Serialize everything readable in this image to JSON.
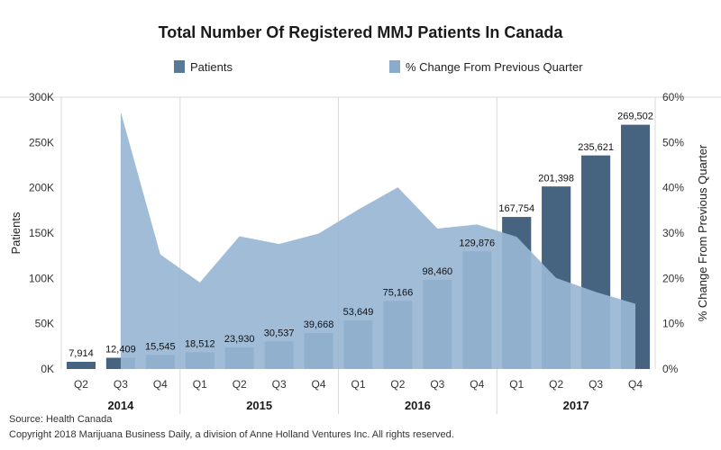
{
  "chart_data": {
    "type": "bar",
    "title": "Total Number Of Registered MMJ Patients In Canada",
    "categories": [
      "Q2",
      "Q3",
      "Q4",
      "Q1",
      "Q2",
      "Q3",
      "Q4",
      "Q1",
      "Q2",
      "Q3",
      "Q4",
      "Q1",
      "Q2",
      "Q3",
      "Q4"
    ],
    "years": [
      {
        "label": "2014",
        "start": 0,
        "end": 2
      },
      {
        "label": "2015",
        "start": 3,
        "end": 6
      },
      {
        "label": "2016",
        "start": 7,
        "end": 10
      },
      {
        "label": "2017",
        "start": 11,
        "end": 14
      }
    ],
    "series": [
      {
        "name": "Patients",
        "type": "bar",
        "axis": "left",
        "values": [
          7914,
          12409,
          15545,
          18512,
          23930,
          30537,
          39668,
          53649,
          75166,
          98460,
          129876,
          167754,
          201398,
          235621,
          269502
        ],
        "labels": [
          "7,914",
          "12,409",
          "15,545",
          "18,512",
          "23,930",
          "30,537",
          "39,668",
          "53,649",
          "75,166",
          "98,460",
          "129,876",
          "167,754",
          "201,398",
          "235,621",
          "269,502"
        ]
      },
      {
        "name": "% Change From Previous Quarter",
        "type": "area",
        "axis": "right",
        "values": [
          null,
          56.8,
          25.3,
          19.1,
          29.3,
          27.6,
          29.9,
          35.2,
          40.1,
          31.0,
          31.9,
          29.2,
          20.1,
          17.0,
          14.4
        ]
      }
    ],
    "ylabel": "Patients",
    "y2label": "% Change From Previous Quarter",
    "ylim": [
      0,
      300000
    ],
    "y2lim": [
      0,
      60
    ],
    "yticks": [
      0,
      50000,
      100000,
      150000,
      200000,
      250000,
      300000
    ],
    "ytick_labels": [
      "0K",
      "50K",
      "100K",
      "150K",
      "200K",
      "250K",
      "300K"
    ],
    "y2ticks": [
      0,
      10,
      20,
      30,
      40,
      50,
      60
    ],
    "y2tick_labels": [
      "0%",
      "10%",
      "20%",
      "30%",
      "40%",
      "50%",
      "60%"
    ],
    "legend_position": "top"
  },
  "colors": {
    "bar_light": "#5b80a4",
    "bar_dark": "#466480",
    "area": "#97b5d3",
    "legend_bar": "#587a97",
    "legend_area": "#89abcc",
    "grid": "#d8d8d8"
  },
  "footer": {
    "source": "Source: Health Canada",
    "copyright": "Copyright 2018 Marijuana Business Daily, a division of Anne Holland Ventures Inc. All rights reserved."
  }
}
